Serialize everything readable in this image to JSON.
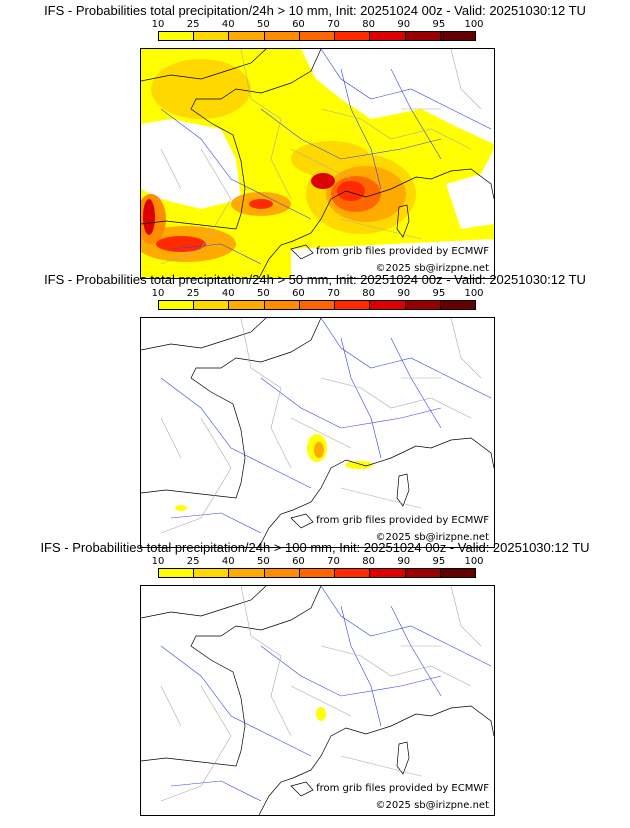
{
  "colorbar": {
    "ticks": [
      "10",
      "25",
      "40",
      "50",
      "60",
      "70",
      "80",
      "90",
      "95",
      "100"
    ],
    "colors": [
      "#ffff00",
      "#ffd800",
      "#ffaa00",
      "#ff8c00",
      "#ff6600",
      "#ff2a00",
      "#dd0000",
      "#9a0000",
      "#650000"
    ]
  },
  "panels": [
    {
      "title": "IFS - Probabilities total precipitation/24h > 10 mm, Init: 20251024 00z - Valid: 20251030:12 TU",
      "credit_source": "from grib files provided by ECMWF",
      "credit_copyright": "©2025 sb@irizpne.net"
    },
    {
      "title": "IFS - Probabilities total precipitation/24h > 50 mm, Init: 20251024 00z - Valid: 20251030:12 TU",
      "credit_source": "from grib files provided by ECMWF",
      "credit_copyright": "©2025 sb@irizpne.net"
    },
    {
      "title": "IFS - Probabilities total precipitation/24h > 100 mm, Init: 20251024 00z - Valid: 20251030:12 TU",
      "credit_source": "from grib files provided by ECMWF",
      "credit_copyright": "©2025 sb@irizpne.net"
    }
  ]
}
